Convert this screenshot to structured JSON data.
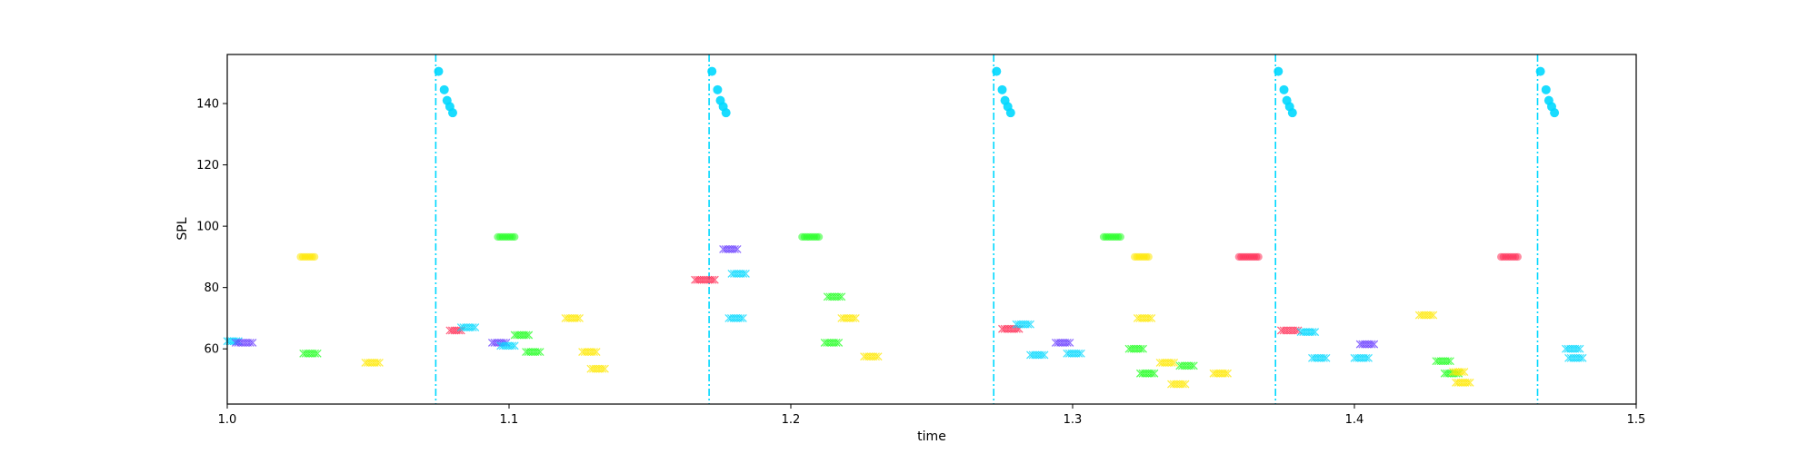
{
  "chart_data": {
    "type": "scatter",
    "title": "",
    "xlabel": "time",
    "ylabel": "SPL",
    "xlim": [
      1.0,
      1.5
    ],
    "ylim": [
      42,
      156
    ],
    "xticks": [
      1.0,
      1.1,
      1.2,
      1.3,
      1.4,
      1.5
    ],
    "xtick_labels": [
      "1.0",
      "1.1",
      "1.2",
      "1.3",
      "1.4",
      "1.5"
    ],
    "yticks": [
      60,
      80,
      100,
      120,
      140
    ],
    "ytick_labels": [
      "60",
      "80",
      "100",
      "120",
      "140"
    ],
    "grid": false,
    "colors": {
      "cyan": "#00d8ff",
      "red": "#ff2d55",
      "blue": "#6a3dff",
      "green": "#22ff22",
      "yellow": "#ffe800"
    },
    "vlines": [
      1.074,
      1.171,
      1.272,
      1.372,
      1.465
    ],
    "beat_markers": [
      {
        "x": [
          1.075,
          1.077,
          1.078,
          1.079,
          1.08
        ],
        "y": [
          150.5,
          144.5,
          141,
          139,
          137
        ]
      },
      {
        "x": [
          1.172,
          1.174,
          1.175,
          1.176,
          1.177
        ],
        "y": [
          150.5,
          144.5,
          141,
          139,
          137
        ]
      },
      {
        "x": [
          1.273,
          1.275,
          1.276,
          1.277,
          1.278
        ],
        "y": [
          150.5,
          144.5,
          141,
          139,
          137
        ]
      },
      {
        "x": [
          1.373,
          1.375,
          1.376,
          1.377,
          1.378
        ],
        "y": [
          150.5,
          144.5,
          141,
          139,
          137
        ]
      },
      {
        "x": [
          1.466,
          1.468,
          1.469,
          1.47,
          1.471
        ],
        "y": [
          150.5,
          144.5,
          141,
          139,
          137
        ]
      }
    ],
    "notes": [
      {
        "x0": 1.0,
        "x1": 1.004,
        "y": 62.5,
        "color": "cyan",
        "marker": "x"
      },
      {
        "x0": 1.003,
        "x1": 1.009,
        "y": 62,
        "color": "blue",
        "marker": "x"
      },
      {
        "x0": 1.027,
        "x1": 1.032,
        "y": 58.5,
        "color": "green",
        "marker": "x"
      },
      {
        "x0": 1.026,
        "x1": 1.031,
        "y": 90,
        "color": "yellow",
        "marker": "o"
      },
      {
        "x0": 1.049,
        "x1": 1.054,
        "y": 55.5,
        "color": "yellow",
        "marker": "x"
      },
      {
        "x0": 1.079,
        "x1": 1.083,
        "y": 66,
        "color": "red",
        "marker": "x"
      },
      {
        "x0": 1.083,
        "x1": 1.088,
        "y": 67,
        "color": "cyan",
        "marker": "x"
      },
      {
        "x0": 1.094,
        "x1": 1.099,
        "y": 62,
        "color": "blue",
        "marker": "x"
      },
      {
        "x0": 1.097,
        "x1": 1.102,
        "y": 61,
        "color": "cyan",
        "marker": "x"
      },
      {
        "x0": 1.096,
        "x1": 1.102,
        "y": 96.5,
        "color": "green",
        "marker": "o"
      },
      {
        "x0": 1.102,
        "x1": 1.107,
        "y": 64.5,
        "color": "green",
        "marker": "x"
      },
      {
        "x0": 1.106,
        "x1": 1.111,
        "y": 59,
        "color": "green",
        "marker": "x"
      },
      {
        "x0": 1.12,
        "x1": 1.125,
        "y": 70,
        "color": "yellow",
        "marker": "x"
      },
      {
        "x0": 1.126,
        "x1": 1.131,
        "y": 59,
        "color": "yellow",
        "marker": "x"
      },
      {
        "x0": 1.129,
        "x1": 1.134,
        "y": 53.5,
        "color": "yellow",
        "marker": "x"
      },
      {
        "x0": 1.166,
        "x1": 1.173,
        "y": 82.5,
        "color": "red",
        "marker": "x"
      },
      {
        "x0": 1.176,
        "x1": 1.181,
        "y": 92.5,
        "color": "blue",
        "marker": "x"
      },
      {
        "x0": 1.179,
        "x1": 1.184,
        "y": 84.5,
        "color": "cyan",
        "marker": "x"
      },
      {
        "x0": 1.178,
        "x1": 1.183,
        "y": 70,
        "color": "cyan",
        "marker": "x"
      },
      {
        "x0": 1.204,
        "x1": 1.21,
        "y": 96.5,
        "color": "green",
        "marker": "o"
      },
      {
        "x0": 1.212,
        "x1": 1.217,
        "y": 62,
        "color": "green",
        "marker": "x"
      },
      {
        "x0": 1.213,
        "x1": 1.218,
        "y": 77,
        "color": "green",
        "marker": "x"
      },
      {
        "x0": 1.218,
        "x1": 1.223,
        "y": 70,
        "color": "yellow",
        "marker": "x"
      },
      {
        "x0": 1.226,
        "x1": 1.231,
        "y": 57.5,
        "color": "yellow",
        "marker": "x"
      },
      {
        "x0": 1.275,
        "x1": 1.281,
        "y": 66.5,
        "color": "red",
        "marker": "x"
      },
      {
        "x0": 1.28,
        "x1": 1.285,
        "y": 68,
        "color": "cyan",
        "marker": "x"
      },
      {
        "x0": 1.285,
        "x1": 1.29,
        "y": 58,
        "color": "cyan",
        "marker": "x"
      },
      {
        "x0": 1.294,
        "x1": 1.299,
        "y": 62,
        "color": "blue",
        "marker": "x"
      },
      {
        "x0": 1.298,
        "x1": 1.303,
        "y": 58.5,
        "color": "cyan",
        "marker": "x"
      },
      {
        "x0": 1.311,
        "x1": 1.317,
        "y": 96.5,
        "color": "green",
        "marker": "o"
      },
      {
        "x0": 1.32,
        "x1": 1.325,
        "y": 60,
        "color": "green",
        "marker": "x"
      },
      {
        "x0": 1.322,
        "x1": 1.327,
        "y": 90,
        "color": "yellow",
        "marker": "o"
      },
      {
        "x0": 1.323,
        "x1": 1.328,
        "y": 70,
        "color": "yellow",
        "marker": "x"
      },
      {
        "x0": 1.324,
        "x1": 1.329,
        "y": 52,
        "color": "green",
        "marker": "x"
      },
      {
        "x0": 1.331,
        "x1": 1.336,
        "y": 55.5,
        "color": "yellow",
        "marker": "x"
      },
      {
        "x0": 1.335,
        "x1": 1.34,
        "y": 48.5,
        "color": "yellow",
        "marker": "x"
      },
      {
        "x0": 1.338,
        "x1": 1.343,
        "y": 54.5,
        "color": "green",
        "marker": "x"
      },
      {
        "x0": 1.35,
        "x1": 1.355,
        "y": 52,
        "color": "yellow",
        "marker": "x"
      },
      {
        "x0": 1.359,
        "x1": 1.366,
        "y": 90,
        "color": "red",
        "marker": "o"
      },
      {
        "x0": 1.374,
        "x1": 1.38,
        "y": 66,
        "color": "red",
        "marker": "x"
      },
      {
        "x0": 1.381,
        "x1": 1.386,
        "y": 65.5,
        "color": "cyan",
        "marker": "x"
      },
      {
        "x0": 1.385,
        "x1": 1.39,
        "y": 57,
        "color": "cyan",
        "marker": "x"
      },
      {
        "x0": 1.4,
        "x1": 1.405,
        "y": 57,
        "color": "cyan",
        "marker": "x"
      },
      {
        "x0": 1.402,
        "x1": 1.407,
        "y": 61.5,
        "color": "blue",
        "marker": "x"
      },
      {
        "x0": 1.423,
        "x1": 1.428,
        "y": 71,
        "color": "yellow",
        "marker": "x"
      },
      {
        "x0": 1.429,
        "x1": 1.434,
        "y": 56,
        "color": "green",
        "marker": "x"
      },
      {
        "x0": 1.432,
        "x1": 1.437,
        "y": 52,
        "color": "green",
        "marker": "x"
      },
      {
        "x0": 1.435,
        "x1": 1.439,
        "y": 52.5,
        "color": "yellow",
        "marker": "x"
      },
      {
        "x0": 1.436,
        "x1": 1.441,
        "y": 49,
        "color": "yellow",
        "marker": "x"
      },
      {
        "x0": 1.452,
        "x1": 1.458,
        "y": 90,
        "color": "red",
        "marker": "o"
      },
      {
        "x0": 1.475,
        "x1": 1.48,
        "y": 60,
        "color": "cyan",
        "marker": "x"
      },
      {
        "x0": 1.476,
        "x1": 1.481,
        "y": 57,
        "color": "cyan",
        "marker": "x"
      }
    ]
  }
}
